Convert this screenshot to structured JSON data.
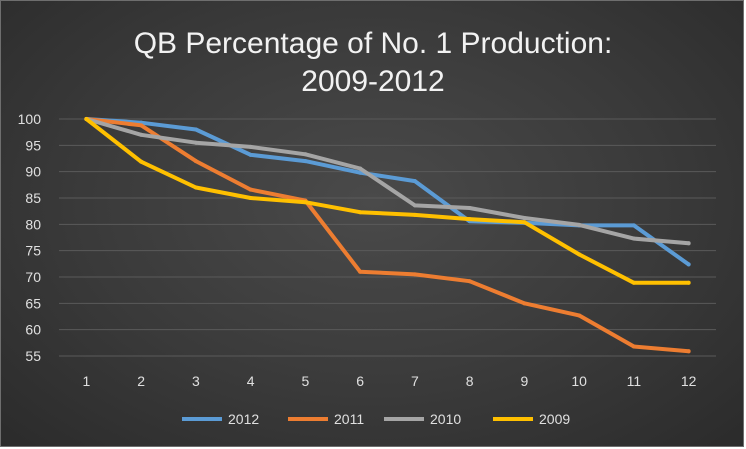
{
  "chart_data": {
    "type": "line",
    "title_line1": "QB Percentage of No. 1 Production:",
    "title_line2": "2009-2012",
    "xlabel": "",
    "ylabel": "",
    "categories": [
      "1",
      "2",
      "3",
      "4",
      "5",
      "6",
      "7",
      "8",
      "9",
      "10",
      "11",
      "12"
    ],
    "ylim": [
      55,
      100
    ],
    "yticks": [
      "100",
      "95",
      "90",
      "85",
      "80",
      "75",
      "70",
      "65",
      "60",
      "55"
    ],
    "grid": true,
    "legend_position": "bottom",
    "series": [
      {
        "name": "2012",
        "color": "#5b9bd5",
        "values": [
          100,
          99.3,
          98,
          93.2,
          92,
          89.8,
          88.2,
          80.6,
          80.3,
          79.8,
          79.8,
          72.4
        ]
      },
      {
        "name": "2011",
        "color": "#ed7d31",
        "values": [
          100,
          98.8,
          92,
          86.6,
          84.5,
          71,
          70.5,
          69.2,
          65,
          62.7,
          56.8,
          55.9
        ]
      },
      {
        "name": "2010",
        "color": "#a5a5a5",
        "values": [
          100,
          97,
          95.5,
          94.7,
          93.3,
          90.6,
          83.6,
          83.1,
          81.2,
          79.9,
          77.3,
          76.4
        ]
      },
      {
        "name": "2009",
        "color": "#ffc000",
        "values": [
          100,
          91.9,
          87,
          85,
          84.2,
          82.3,
          81.8,
          81,
          80.4,
          74.3,
          68.9,
          68.9
        ]
      }
    ]
  }
}
